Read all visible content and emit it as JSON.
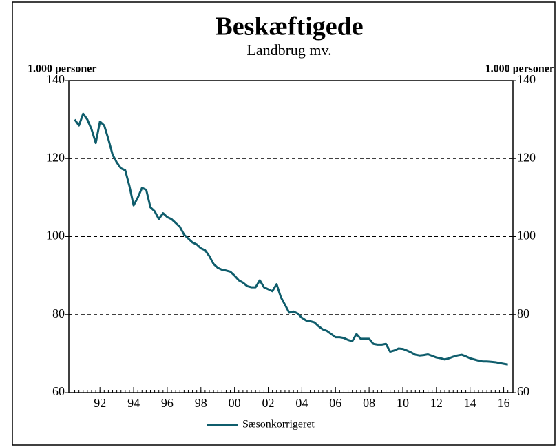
{
  "chart_data": {
    "type": "line",
    "title": "Beskæftigede",
    "subtitle": "Landbrug mv.",
    "ylabel": "1.000 personer",
    "y2label": "1.000 personer",
    "x": [
      1991,
      1991.25,
      1991.5,
      1991.75,
      1992,
      1992.25,
      1992.5,
      1992.75,
      1993,
      1993.25,
      1993.5,
      1993.75,
      1994,
      1994.25,
      1994.5,
      1994.75,
      1995,
      1995.25,
      1995.5,
      1995.75,
      1996,
      1996.25,
      1996.5,
      1996.75,
      1997,
      1997.25,
      1997.5,
      1997.75,
      1998,
      1998.25,
      1998.5,
      1998.75,
      1999,
      1999.25,
      1999.5,
      1999.75,
      2000,
      2000.25,
      2000.5,
      2000.75,
      2001,
      2001.25,
      2001.5,
      2001.75,
      2002,
      2002.25,
      2002.5,
      2002.75,
      2003,
      2003.25,
      2003.5,
      2003.75,
      2004,
      2004.25,
      2004.5,
      2004.75,
      2005,
      2005.25,
      2005.5,
      2005.75,
      2006,
      2006.25,
      2006.5,
      2006.75,
      2007,
      2007.25,
      2007.5,
      2007.75,
      2008,
      2008.25,
      2008.5,
      2008.75,
      2009,
      2009.25,
      2009.5,
      2009.75,
      2010,
      2010.25,
      2010.5,
      2010.75,
      2011,
      2011.25,
      2011.5,
      2011.75,
      2012,
      2012.25,
      2012.5,
      2012.75,
      2013,
      2013.25,
      2013.5,
      2013.75,
      2014,
      2014.25,
      2014.5,
      2014.75,
      2015,
      2015.25,
      2015.5,
      2015.75,
      2016,
      2016.25,
      2016.5,
      2016.75
    ],
    "series": [
      {
        "name": "Sæsonkorrigeret",
        "color": "#0f5d6c",
        "values": [
          130,
          128.5,
          131.5,
          130,
          127.5,
          124,
          129.5,
          128.5,
          125,
          121,
          119,
          117.5,
          117,
          113,
          108,
          110,
          112.5,
          112,
          107.5,
          106.5,
          104.5,
          106,
          105,
          104.5,
          103.5,
          102.5,
          100.5,
          99.5,
          98.5,
          98,
          97,
          96.5,
          95,
          93,
          92,
          91.5,
          91.3,
          91,
          90,
          88.8,
          88.2,
          87.3,
          87,
          87,
          88.8,
          87,
          86.5,
          86,
          87.8,
          84.5,
          82.5,
          80.5,
          80.8,
          80.3,
          79.2,
          78.5,
          78.3,
          78,
          77,
          76.2,
          75.8,
          75,
          74.2,
          74.2,
          74,
          73.5,
          73.2,
          75,
          73.8,
          73.8,
          73.8,
          72.5,
          72.3,
          72.3,
          72.5,
          70.5,
          70.8,
          71.3,
          71.2,
          70.8,
          70.3,
          69.7,
          69.5,
          69.6,
          69.8,
          69.4,
          69,
          68.8,
          68.5,
          68.8,
          69.2,
          69.5,
          69.7,
          69.3,
          68.8,
          68.5,
          68.2,
          68,
          68,
          67.9,
          67.8,
          67.6,
          67.4,
          67.2
        ]
      }
    ],
    "xlim": [
      1990.65,
      2017.05
    ],
    "xticks": [
      {
        "value": 1992.5,
        "label": "92"
      },
      {
        "value": 1994.5,
        "label": "94"
      },
      {
        "value": 1996.5,
        "label": "96"
      },
      {
        "value": 1998.5,
        "label": "98"
      },
      {
        "value": 2000.5,
        "label": "00"
      },
      {
        "value": 2002.5,
        "label": "02"
      },
      {
        "value": 2004.5,
        "label": "04"
      },
      {
        "value": 2006.5,
        "label": "06"
      },
      {
        "value": 2008.5,
        "label": "08"
      },
      {
        "value": 2010.5,
        "label": "10"
      },
      {
        "value": 2012.5,
        "label": "12"
      },
      {
        "value": 2014.5,
        "label": "14"
      },
      {
        "value": 2016.5,
        "label": "16"
      }
    ],
    "ylim": [
      60,
      140
    ],
    "yticks": [
      60,
      80,
      100,
      120,
      140
    ],
    "y2lim": [
      60,
      140
    ],
    "y2ticks": [
      60,
      80,
      100,
      120,
      140
    ],
    "grid": true,
    "legend": "bottom"
  }
}
